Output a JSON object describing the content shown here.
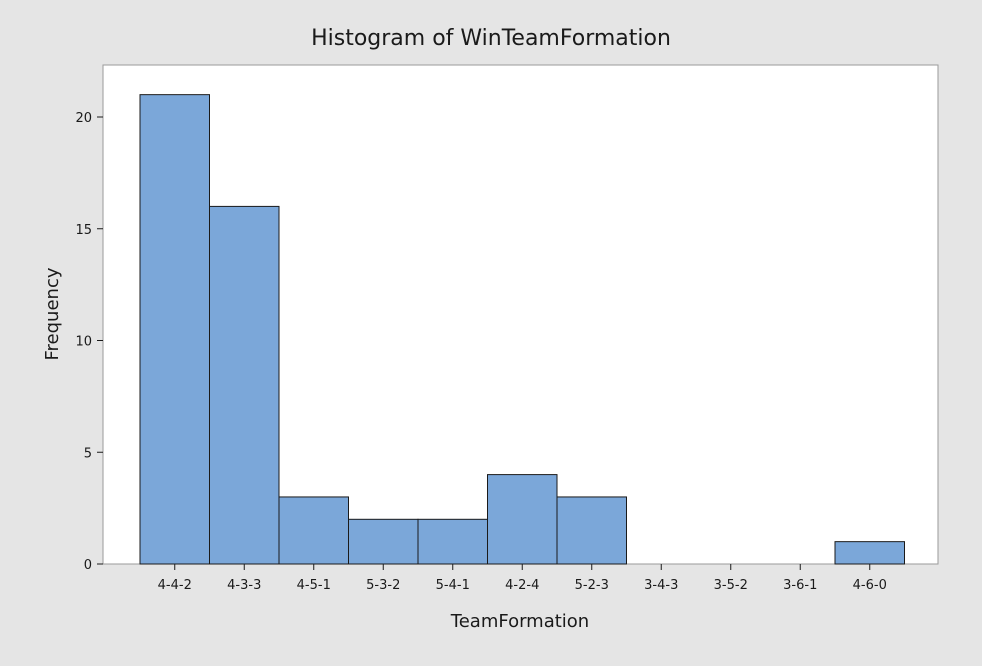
{
  "chart_data": {
    "type": "bar",
    "title": "Histogram of WinTeamFormation",
    "xlabel": "TeamFormation",
    "ylabel": "Frequency",
    "categories": [
      "4-4-2",
      "4-3-3",
      "4-5-1",
      "5-3-2",
      "5-4-1",
      "4-2-4",
      "5-2-3",
      "3-4-3",
      "3-5-2",
      "3-6-1",
      "4-6-0"
    ],
    "values": [
      21,
      16,
      3,
      2,
      2,
      4,
      3,
      0,
      0,
      0,
      1
    ],
    "yticks": [
      0,
      5,
      10,
      15,
      20
    ],
    "ylim": [
      0,
      22
    ],
    "grid": false,
    "bar_color": "#7ba7d9",
    "bar_edge_color": "#1a1a1a",
    "background_color": "#e5e5e5",
    "plot_background": "#ffffff"
  }
}
